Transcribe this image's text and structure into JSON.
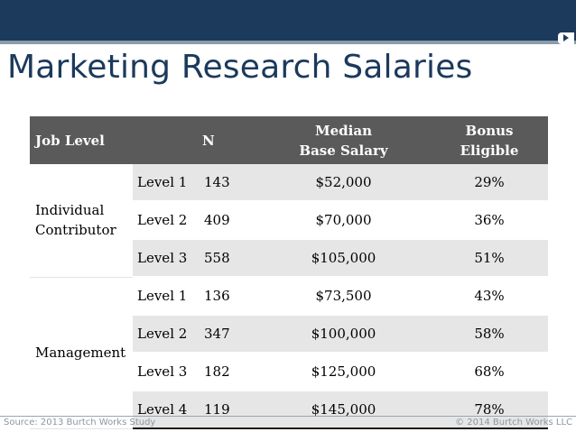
{
  "title": "Marketing Research Salaries",
  "table": {
    "headers": {
      "job_level": "Job Level",
      "n": "N",
      "median_line1": "Median",
      "median_line2": "Base Salary",
      "bonus_line1": "Bonus",
      "bonus_line2": "Eligible"
    },
    "groups": [
      {
        "name_line1": "Individual",
        "name_line2": "Contributor",
        "rows": [
          {
            "level": "Level 1",
            "n": "143",
            "median": "$52,000",
            "bonus": "29%"
          },
          {
            "level": "Level 2",
            "n": "409",
            "median": "$70,000",
            "bonus": "36%"
          },
          {
            "level": "Level 3",
            "n": "558",
            "median": "$105,000",
            "bonus": "51%"
          }
        ]
      },
      {
        "name_line1": "Management",
        "rows": [
          {
            "level": "Level 1",
            "n": "136",
            "median": "$73,500",
            "bonus": "43%"
          },
          {
            "level": "Level 2",
            "n": "347",
            "median": "$100,000",
            "bonus": "58%"
          },
          {
            "level": "Level 3",
            "n": "182",
            "median": "$125,000",
            "bonus": "68%"
          },
          {
            "level": "Level 4",
            "n": "119",
            "median": "$145,000",
            "bonus": "78%"
          }
        ]
      }
    ]
  },
  "footer": {
    "source": "Source: 2013 Burtch Works Study",
    "copyright": "© 2014 Burtch Works LLC"
  },
  "colors": {
    "title": "#1b3a5c",
    "header_bg": "#5a5a5a",
    "row_shade": "#e6e6e6",
    "footer_text": "#8b96a2"
  }
}
